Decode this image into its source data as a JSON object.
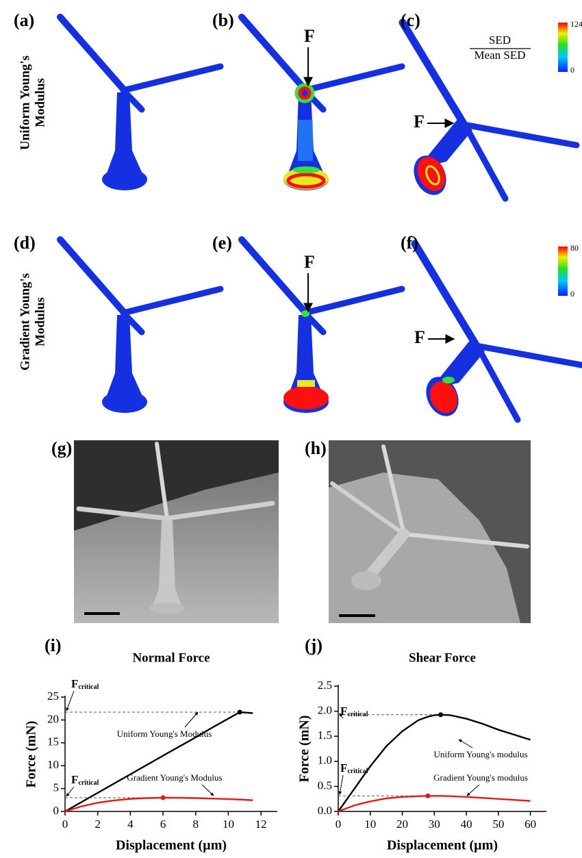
{
  "panel_labels": [
    "(a)",
    "(b)",
    "(c)",
    "(d)",
    "(e)",
    "(f)",
    "(g)",
    "(h)"
  ],
  "row_labels": [
    [
      "Uniform Young's",
      "Modulus"
    ],
    [
      "Gradient Young's",
      "Modulus"
    ]
  ],
  "force_label": "F",
  "sed_ratio": {
    "numerator": "SED",
    "denominator": "Mean SED"
  },
  "colorbars": [
    {
      "max": 124,
      "min": 0
    },
    {
      "max": 80,
      "min": 0
    }
  ],
  "chart_data": [
    {
      "type": "line",
      "panel_label": "(i)",
      "title": "Normal Force",
      "x_label": "Displacement (µm)",
      "y_label": "Force (mN)",
      "critical_label": "F",
      "critical_subscript": "critical",
      "x": [
        0,
        1,
        2,
        3,
        4,
        5,
        6,
        7,
        8,
        9,
        10,
        10.7,
        11.5
      ],
      "xlim": [
        0,
        13
      ],
      "xticks": [
        0,
        2,
        4,
        6,
        8,
        10,
        12
      ],
      "ylim": [
        0,
        25
      ],
      "yticks": [
        0,
        5,
        10,
        15,
        20,
        25
      ],
      "series": [
        {
          "name": "Uniform Young's Modulus",
          "color": "#000000",
          "values": [
            0,
            2.03,
            4.06,
            6.09,
            8.12,
            10.15,
            12.18,
            14.2,
            16.2,
            18.3,
            20.3,
            21.7,
            21.5
          ],
          "peak": {
            "x": 10.7,
            "y": 21.7
          }
        },
        {
          "name": "Gradient Young's Modulus",
          "color": "#e8170f",
          "values": [
            0,
            1.1,
            1.9,
            2.4,
            2.75,
            2.92,
            3.0,
            2.98,
            2.92,
            2.82,
            2.7,
            2.6,
            2.45
          ],
          "peak": {
            "x": 6,
            "y": 3.0
          }
        }
      ]
    },
    {
      "type": "line",
      "panel_label": "(j)",
      "title": "Shear Force",
      "x_label": "Displacement (µm)",
      "y_label": "Force (mN)",
      "critical_label": "F",
      "critical_subscript": "critical",
      "x": [
        0,
        5,
        10,
        15,
        20,
        25,
        28,
        30,
        32,
        35,
        40,
        45,
        50,
        55,
        60
      ],
      "xlim": [
        0,
        65
      ],
      "xticks": [
        0,
        10,
        20,
        30,
        40,
        50,
        60
      ],
      "ylim": [
        0,
        2.5
      ],
      "yticks": [
        {
          "value": 0,
          "label": "0.0"
        },
        0.5,
        {
          "value": 1,
          "label": "1.0"
        },
        1.5,
        {
          "value": 2,
          "label": "2.0"
        },
        2.5
      ],
      "series": [
        {
          "name": "Uniform Young's modulus",
          "color": "#000000",
          "values": [
            0,
            0.45,
            0.9,
            1.3,
            1.6,
            1.82,
            1.89,
            1.92,
            1.93,
            1.92,
            1.85,
            1.75,
            1.63,
            1.53,
            1.43
          ],
          "peak": {
            "x": 32,
            "y": 1.93
          }
        },
        {
          "name": "Gradient Young's modulus",
          "color": "#e8170f",
          "values": [
            0,
            0.12,
            0.2,
            0.26,
            0.29,
            0.305,
            0.31,
            0.31,
            0.31,
            0.305,
            0.29,
            0.27,
            0.25,
            0.23,
            0.21
          ],
          "peak": {
            "x": 28,
            "y": 0.31
          }
        }
      ]
    }
  ]
}
